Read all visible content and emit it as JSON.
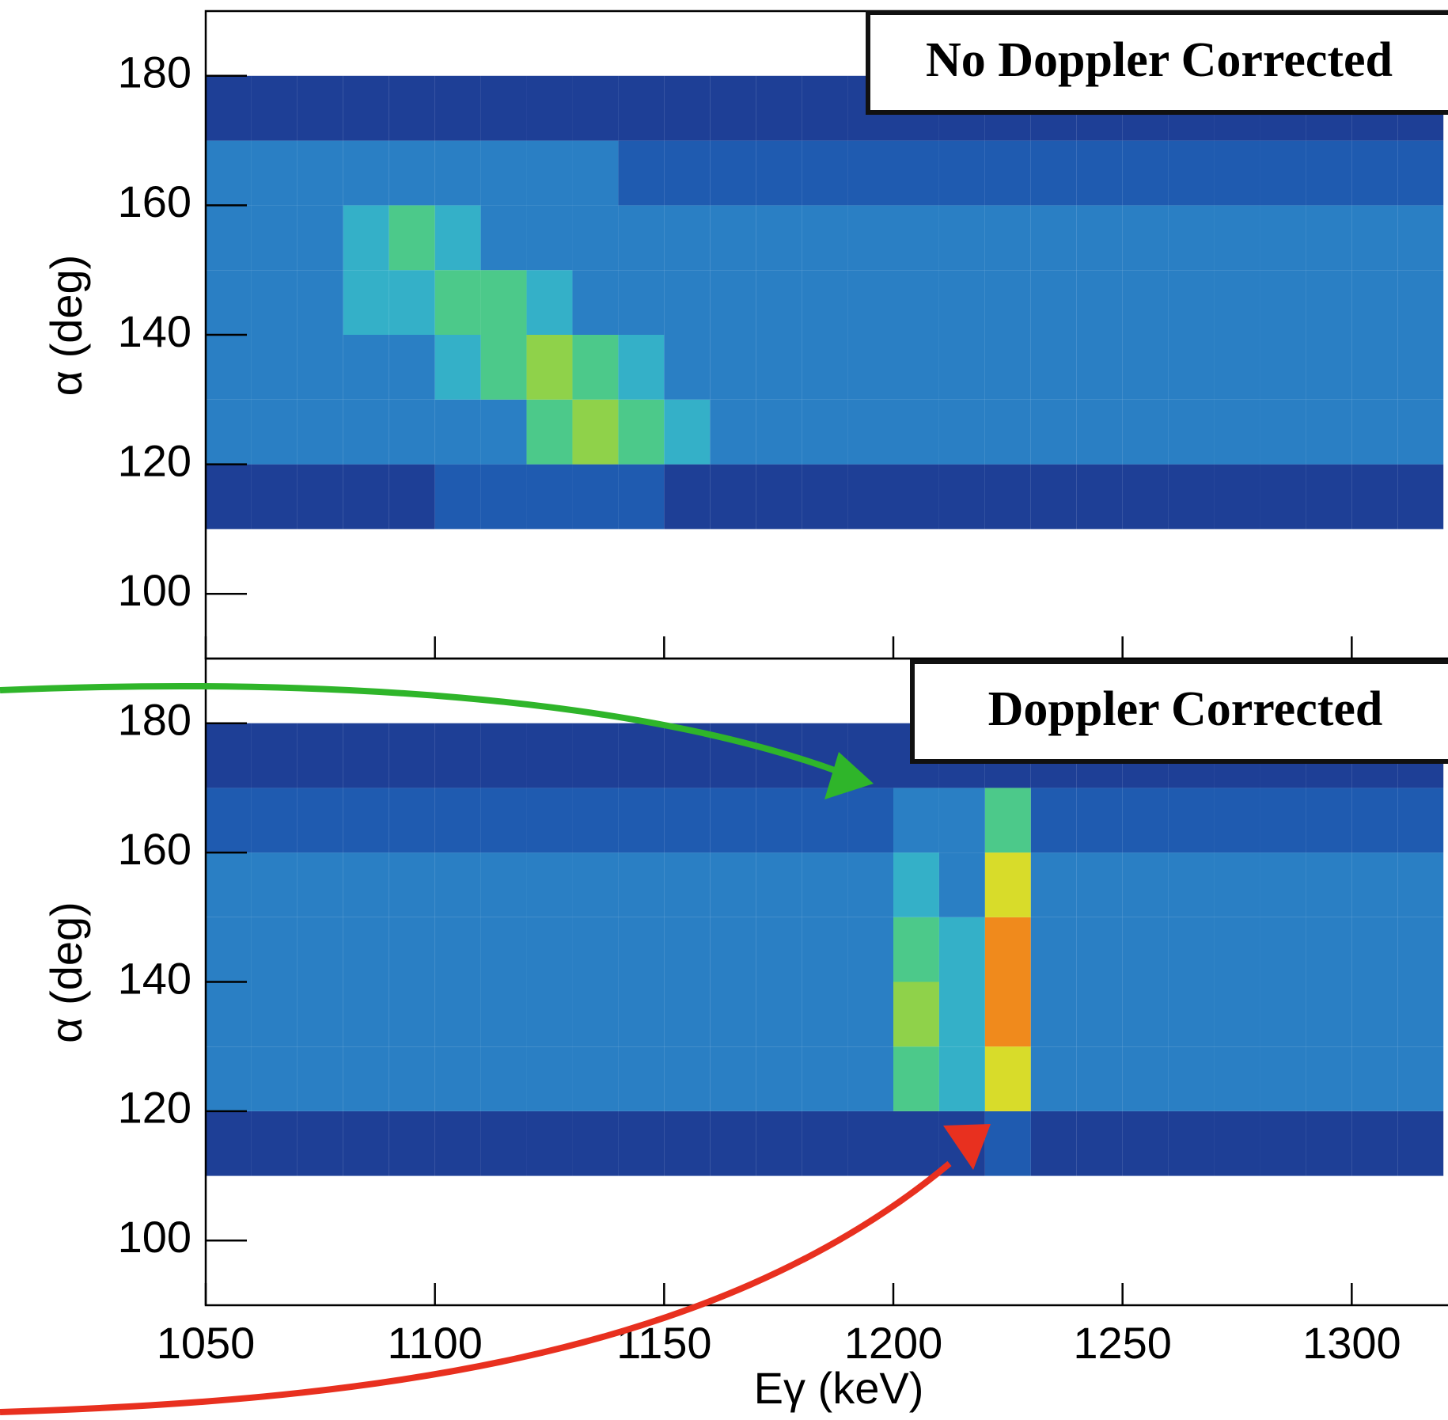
{
  "chart_data": [
    {
      "type": "heatmap",
      "annotation": "No Doppler Corrected",
      "y_label": "α (deg)",
      "xlim": [
        1050,
        1321
      ],
      "ylim": [
        90,
        190
      ],
      "xticks": [
        1050,
        1100,
        1150,
        1200,
        1250,
        1300
      ],
      "yticks": [
        100,
        120,
        140,
        160,
        180
      ],
      "xbins": [
        1050,
        1060,
        1070,
        1080,
        1090,
        1100,
        1110,
        1120,
        1130,
        1140,
        1150,
        1160,
        1170,
        1180,
        1190,
        1200,
        1210,
        1220,
        1230,
        1240,
        1250,
        1260,
        1270,
        1280,
        1290,
        1300,
        1310,
        1320
      ],
      "ybins": [
        110,
        120,
        130,
        140,
        150,
        160,
        170,
        180
      ],
      "colors": [
        "#ffffff",
        "#1e3f96",
        "#1f5bb0",
        "#2a7fc4",
        "#34b0c8",
        "#4cc98a",
        "#8fd24a",
        "#d8dc2a",
        "#f08a1c",
        "#d8261a"
      ],
      "z": [
        [
          1,
          1,
          1,
          1,
          1,
          2,
          2,
          2,
          2,
          2,
          1,
          1,
          1,
          1,
          1,
          1,
          1,
          1,
          1,
          1,
          1,
          1,
          1,
          1,
          1,
          1,
          1
        ],
        [
          3,
          3,
          3,
          3,
          3,
          3,
          3,
          5,
          6,
          5,
          4,
          3,
          3,
          3,
          3,
          3,
          3,
          3,
          3,
          3,
          3,
          3,
          3,
          3,
          3,
          3,
          3
        ],
        [
          3,
          3,
          3,
          3,
          3,
          4,
          5,
          6,
          5,
          4,
          3,
          3,
          3,
          3,
          3,
          3,
          3,
          3,
          3,
          3,
          3,
          3,
          3,
          3,
          3,
          3,
          3
        ],
        [
          3,
          3,
          3,
          4,
          4,
          5,
          5,
          4,
          3,
          3,
          3,
          3,
          3,
          3,
          3,
          3,
          3,
          3,
          3,
          3,
          3,
          3,
          3,
          3,
          3,
          3,
          3
        ],
        [
          3,
          3,
          3,
          4,
          5,
          4,
          3,
          3,
          3,
          3,
          3,
          3,
          3,
          3,
          3,
          3,
          3,
          3,
          3,
          3,
          3,
          3,
          3,
          3,
          3,
          3,
          3
        ],
        [
          3,
          3,
          3,
          3,
          3,
          3,
          3,
          3,
          3,
          2,
          2,
          2,
          2,
          2,
          2,
          2,
          2,
          2,
          2,
          2,
          2,
          2,
          2,
          2,
          2,
          2,
          2
        ],
        [
          1,
          1,
          1,
          1,
          1,
          1,
          1,
          1,
          1,
          1,
          1,
          1,
          1,
          1,
          1,
          1,
          1,
          1,
          1,
          1,
          1,
          1,
          1,
          1,
          1,
          1,
          1
        ]
      ]
    },
    {
      "type": "heatmap",
      "annotation": "Doppler Corrected",
      "y_label": "α (deg)",
      "x_label": "Eγ (keV)",
      "xlim": [
        1050,
        1321
      ],
      "ylim": [
        90,
        190
      ],
      "xticks": [
        1050,
        1100,
        1150,
        1200,
        1250,
        1300
      ],
      "yticks": [
        100,
        120,
        140,
        160,
        180
      ],
      "xbins": [
        1050,
        1060,
        1070,
        1080,
        1090,
        1100,
        1110,
        1120,
        1130,
        1140,
        1150,
        1160,
        1170,
        1180,
        1190,
        1200,
        1210,
        1220,
        1230,
        1240,
        1250,
        1260,
        1270,
        1280,
        1290,
        1300,
        1310,
        1320
      ],
      "ybins": [
        110,
        120,
        130,
        140,
        150,
        160,
        170,
        180
      ],
      "colors": [
        "#ffffff",
        "#1e3f96",
        "#1f5bb0",
        "#2a7fc4",
        "#34b0c8",
        "#4cc98a",
        "#8fd24a",
        "#d8dc2a",
        "#f08a1c",
        "#d8261a"
      ],
      "z": [
        [
          1,
          1,
          1,
          1,
          1,
          1,
          1,
          1,
          1,
          1,
          1,
          1,
          1,
          1,
          1,
          1,
          1,
          2,
          1,
          1,
          1,
          1,
          1,
          1,
          1,
          1,
          1
        ],
        [
          3,
          3,
          3,
          3,
          3,
          3,
          3,
          3,
          3,
          3,
          3,
          3,
          3,
          3,
          3,
          5,
          4,
          7,
          3,
          3,
          3,
          3,
          3,
          3,
          3,
          3,
          3
        ],
        [
          3,
          3,
          3,
          3,
          3,
          3,
          3,
          3,
          3,
          3,
          3,
          3,
          3,
          3,
          3,
          6,
          4,
          8,
          3,
          3,
          3,
          3,
          3,
          3,
          3,
          3,
          3
        ],
        [
          3,
          3,
          3,
          3,
          3,
          3,
          3,
          3,
          3,
          3,
          3,
          3,
          3,
          3,
          3,
          5,
          4,
          8,
          3,
          3,
          3,
          3,
          3,
          3,
          3,
          3,
          3
        ],
        [
          3,
          3,
          3,
          3,
          3,
          3,
          3,
          3,
          3,
          3,
          3,
          3,
          3,
          3,
          3,
          4,
          3,
          7,
          3,
          3,
          3,
          3,
          3,
          3,
          3,
          3,
          3
        ],
        [
          2,
          2,
          2,
          2,
          2,
          2,
          2,
          2,
          2,
          2,
          2,
          2,
          2,
          2,
          2,
          3,
          3,
          5,
          2,
          2,
          2,
          2,
          2,
          2,
          2,
          2,
          2
        ],
        [
          1,
          1,
          1,
          1,
          1,
          1,
          1,
          1,
          1,
          1,
          1,
          1,
          1,
          1,
          1,
          1,
          1,
          1,
          1,
          1,
          1,
          1,
          1,
          1,
          1,
          1,
          1
        ]
      ]
    }
  ]
}
